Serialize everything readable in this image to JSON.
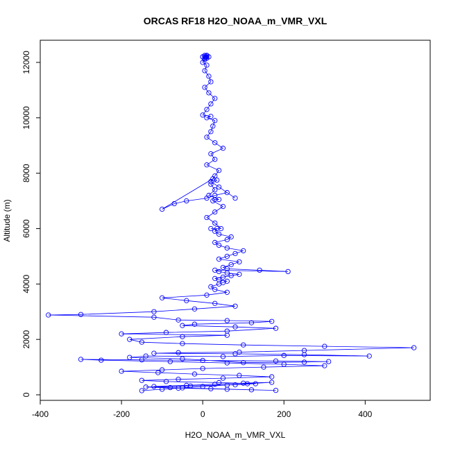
{
  "chart_data": {
    "type": "scatter",
    "title": "ORCAS RF18 H2O_NOAA_m_VMR_VXL",
    "xlabel": "H2O_NOAA_m_VMR_VXL",
    "ylabel": "Altitude (m)",
    "xlim": [
      -400,
      560
    ],
    "ylim": [
      -200,
      12800
    ],
    "xticks": [
      -400,
      -200,
      0,
      200,
      400
    ],
    "yticks": [
      0,
      2000,
      4000,
      6000,
      8000,
      10000,
      12000
    ],
    "xtick_labels": [
      "-400",
      "-200",
      "0",
      "200",
      "400"
    ],
    "ytick_labels": [
      "0",
      "2000",
      "4000",
      "6000",
      "8000",
      "10000",
      "12000"
    ],
    "grid": false,
    "legend": "none",
    "marker": "open-circle",
    "connected": true,
    "color": "#0000ff",
    "series": [
      {
        "x": [
          -150,
          -100,
          -50,
          0,
          60,
          110,
          170,
          100,
          30,
          -40,
          -120,
          -80,
          20,
          120,
          180,
          60,
          -60,
          -140,
          -30,
          80,
          130,
          40,
          -90,
          -150,
          -60,
          50,
          170,
          90,
          -20,
          -110,
          -200,
          -100,
          0,
          150,
          300,
          200,
          60,
          -80,
          -250,
          -300,
          -150,
          0,
          180,
          310,
          250,
          100,
          -50,
          -180,
          -140,
          50,
          200,
          410,
          250,
          80,
          -120,
          -60,
          90,
          250,
          520,
          300,
          100,
          -50,
          -150,
          -180,
          -50,
          60,
          -200,
          -90,
          60,
          180,
          80,
          -50,
          -20,
          120,
          170,
          60,
          -60,
          -120,
          -380,
          -300,
          -120,
          -20,
          80,
          30,
          -40,
          -100,
          10,
          60,
          30,
          20,
          40,
          50,
          60,
          40,
          30,
          50,
          70,
          90,
          60,
          40,
          30,
          210,
          140,
          60,
          50,
          70,
          90,
          40,
          60,
          80,
          100,
          60,
          40,
          30,
          60,
          70,
          40,
          30,
          35,
          20,
          45,
          30,
          10,
          30,
          50,
          25,
          30,
          40,
          15,
          30,
          20,
          35,
          25,
          -100,
          -70,
          -40,
          10,
          30,
          60,
          80,
          40,
          20,
          30,
          40,
          10,
          30,
          20,
          50,
          30,
          10,
          20,
          25,
          30,
          10,
          20,
          0,
          10,
          20,
          30,
          15,
          5,
          20,
          15,
          5,
          10,
          0,
          5,
          10,
          5,
          15,
          10,
          5,
          0,
          5,
          10,
          10,
          5,
          0,
          5,
          10,
          8
        ],
        "y": [
          150,
          200,
          250,
          300,
          350,
          400,
          450,
          420,
          380,
          340,
          300,
          260,
          220,
          180,
          160,
          200,
          240,
          280,
          320,
          360,
          400,
          440,
          480,
          520,
          560,
          600,
          650,
          700,
          750,
          800,
          850,
          900,
          950,
          1000,
          1050,
          1100,
          1150,
          1200,
          1250,
          1280,
          1260,
          1240,
          1220,
          1200,
          1180,
          1160,
          1300,
          1350,
          1400,
          1380,
          1420,
          1400,
          1450,
          1480,
          1500,
          1520,
          1540,
          1600,
          1700,
          1750,
          1800,
          1850,
          1900,
          2000,
          2100,
          2150,
          2200,
          2250,
          2300,
          2400,
          2450,
          2500,
          2550,
          2600,
          2650,
          2680,
          2700,
          2800,
          2880,
          2900,
          3000,
          3100,
          3200,
          3300,
          3400,
          3500,
          3600,
          3700,
          3800,
          3900,
          4000,
          4050,
          4100,
          4150,
          4200,
          4250,
          4300,
          4350,
          4400,
          4450,
          4500,
          4450,
          4500,
          4550,
          4600,
          4700,
          4800,
          4900,
          5000,
          5100,
          5200,
          5300,
          5400,
          5500,
          5600,
          5700,
          5800,
          5900,
          6000,
          6000,
          6000,
          6200,
          6400,
          6600,
          6800,
          7000,
          7050,
          7050,
          7200,
          7400,
          7600,
          7750,
          7800,
          6700,
          6900,
          7000,
          7100,
          7200,
          7300,
          7100,
          7500,
          7700,
          7900,
          8100,
          8300,
          8500,
          8700,
          8900,
          9100,
          9300,
          9500,
          9700,
          9900,
          10000,
          10050,
          10100,
          10300,
          10500,
          10700,
          10900,
          11100,
          11300,
          11500,
          11700,
          11900,
          12000,
          12100,
          12150,
          12200,
          12200,
          12250,
          12250,
          12200,
          12150,
          12200,
          12250,
          12200,
          12200,
          12150,
          12250,
          12200
        ]
      }
    ]
  }
}
